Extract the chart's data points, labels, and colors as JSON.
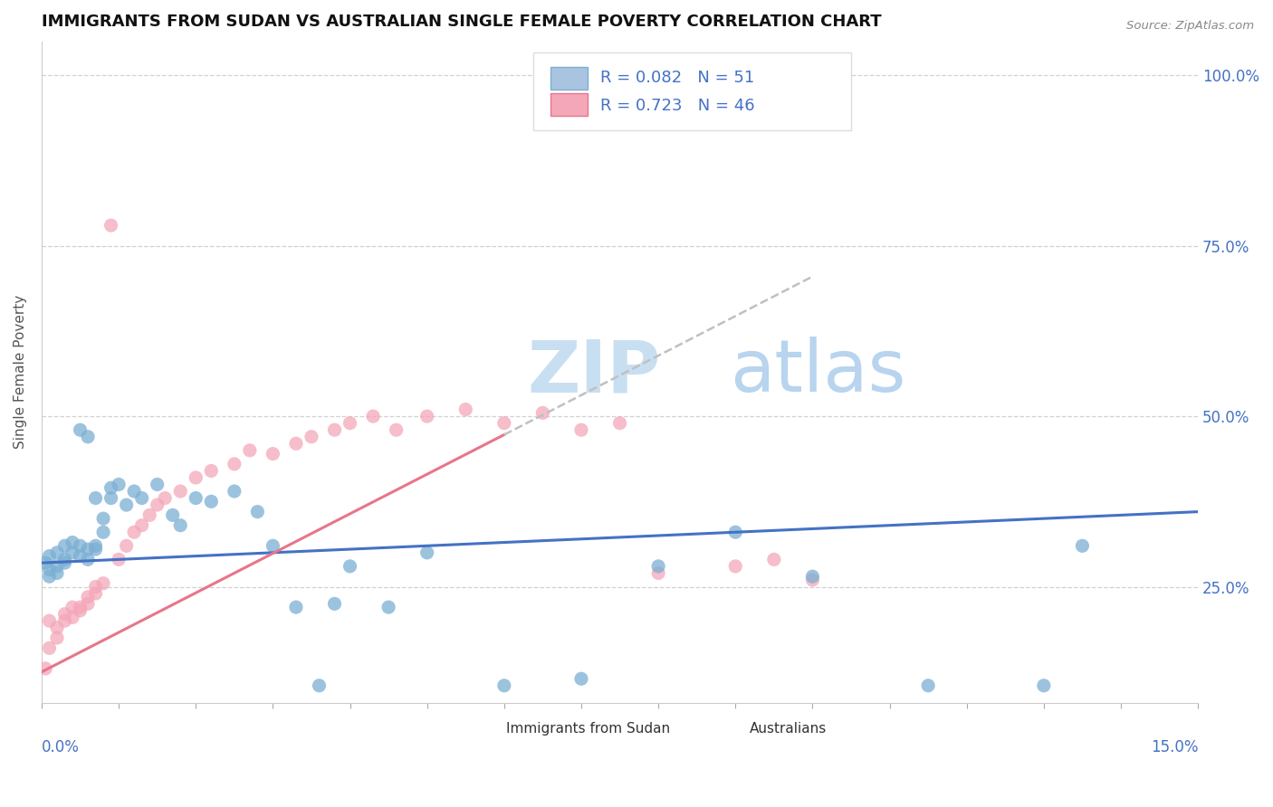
{
  "title": "IMMIGRANTS FROM SUDAN VS AUSTRALIAN SINGLE FEMALE POVERTY CORRELATION CHART",
  "source": "Source: ZipAtlas.com",
  "ylabel": "Single Female Poverty",
  "legend_series": [
    {
      "label": "Immigrants from Sudan",
      "R": 0.082,
      "N": 51,
      "color": "#a8c4e0"
    },
    {
      "label": "Australians",
      "R": 0.723,
      "N": 46,
      "color": "#f4a7b9"
    }
  ],
  "sudan_x": [
    0.0005,
    0.001,
    0.001,
    0.001,
    0.002,
    0.002,
    0.002,
    0.003,
    0.003,
    0.003,
    0.004,
    0.004,
    0.005,
    0.005,
    0.005,
    0.006,
    0.006,
    0.006,
    0.007,
    0.007,
    0.007,
    0.008,
    0.008,
    0.009,
    0.009,
    0.01,
    0.011,
    0.012,
    0.013,
    0.015,
    0.017,
    0.018,
    0.02,
    0.022,
    0.025,
    0.028,
    0.03,
    0.033,
    0.036,
    0.038,
    0.04,
    0.045,
    0.05,
    0.06,
    0.07,
    0.08,
    0.09,
    0.1,
    0.115,
    0.13,
    0.135
  ],
  "sudan_y": [
    0.285,
    0.295,
    0.265,
    0.275,
    0.3,
    0.28,
    0.27,
    0.29,
    0.31,
    0.285,
    0.3,
    0.315,
    0.48,
    0.31,
    0.295,
    0.47,
    0.305,
    0.29,
    0.38,
    0.31,
    0.305,
    0.35,
    0.33,
    0.395,
    0.38,
    0.4,
    0.37,
    0.39,
    0.38,
    0.4,
    0.355,
    0.34,
    0.38,
    0.375,
    0.39,
    0.36,
    0.31,
    0.22,
    0.105,
    0.225,
    0.28,
    0.22,
    0.3,
    0.105,
    0.115,
    0.28,
    0.33,
    0.265,
    0.105,
    0.105,
    0.31
  ],
  "australians_x": [
    0.0005,
    0.001,
    0.001,
    0.002,
    0.002,
    0.003,
    0.003,
    0.004,
    0.004,
    0.005,
    0.005,
    0.006,
    0.006,
    0.007,
    0.007,
    0.008,
    0.009,
    0.01,
    0.011,
    0.012,
    0.013,
    0.014,
    0.015,
    0.016,
    0.018,
    0.02,
    0.022,
    0.025,
    0.027,
    0.03,
    0.033,
    0.035,
    0.038,
    0.04,
    0.043,
    0.046,
    0.05,
    0.055,
    0.06,
    0.065,
    0.07,
    0.075,
    0.08,
    0.09,
    0.095,
    0.1
  ],
  "australians_y": [
    0.13,
    0.16,
    0.2,
    0.175,
    0.19,
    0.2,
    0.21,
    0.205,
    0.22,
    0.215,
    0.22,
    0.225,
    0.235,
    0.25,
    0.24,
    0.255,
    0.78,
    0.29,
    0.31,
    0.33,
    0.34,
    0.355,
    0.37,
    0.38,
    0.39,
    0.41,
    0.42,
    0.43,
    0.45,
    0.445,
    0.46,
    0.47,
    0.48,
    0.49,
    0.5,
    0.48,
    0.5,
    0.51,
    0.49,
    0.505,
    0.48,
    0.49,
    0.27,
    0.28,
    0.29,
    0.26
  ],
  "xlim": [
    0.0,
    0.15
  ],
  "ylim": [
    0.08,
    1.05
  ],
  "yticks": [
    0.25,
    0.5,
    0.75,
    1.0
  ],
  "ytick_labels": [
    "25.0%",
    "50.0%",
    "75.0%",
    "100.0%"
  ],
  "background_color": "#ffffff",
  "grid_color": "#cccccc",
  "sudan_dot_color": "#7bafd4",
  "australians_dot_color": "#f4a7b9",
  "sudan_line_color": "#4472c4",
  "australians_line_color": "#e8758a",
  "top_dashed_color": "#c0c0c0",
  "watermark_text": "ZIPatlas",
  "watermark_color": "#dbeaf7",
  "title_color": "#111111",
  "axis_label_color": "#4472c4",
  "legend_R_color": "#4472c4",
  "sudan_line_intercept": 0.285,
  "sudan_line_slope": 0.5,
  "aus_line_intercept": 0.125,
  "aus_line_slope": 5.8
}
